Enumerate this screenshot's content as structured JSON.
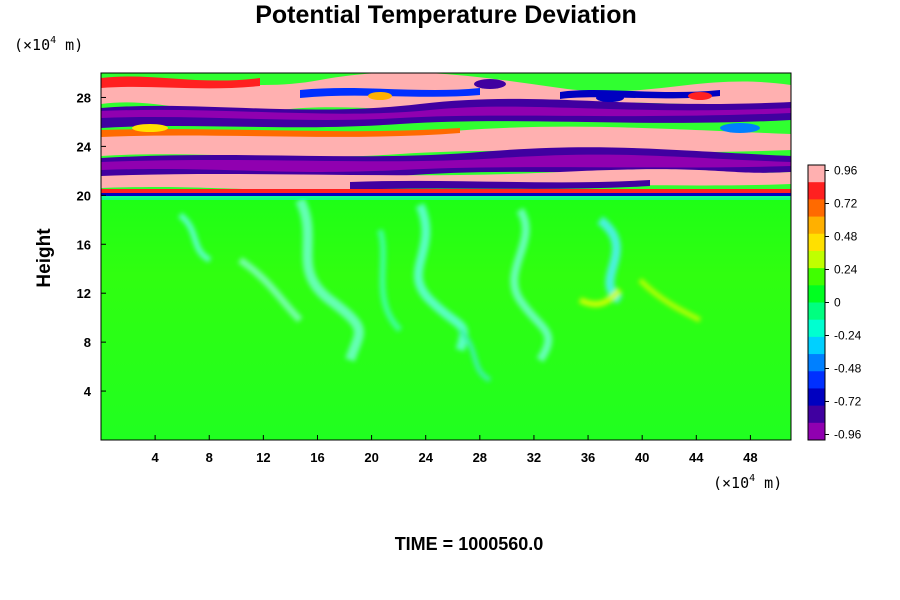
{
  "chart_data": {
    "type": "heatmap",
    "title": "Potential Temperature Deviation",
    "xlabel": "",
    "ylabel": "Height",
    "x_unit": {
      "prefix": "(×10",
      "exp": "4",
      "suffix": " m)"
    },
    "y_unit": {
      "prefix": "(×10",
      "exp": "4",
      "suffix": " m)"
    },
    "xlim": [
      0,
      51
    ],
    "ylim": [
      0,
      30
    ],
    "x_ticks": [
      4,
      8,
      12,
      16,
      20,
      24,
      28,
      32,
      36,
      40,
      44,
      48
    ],
    "y_ticks": [
      4,
      8,
      12,
      16,
      20,
      24,
      28
    ],
    "colorbar": {
      "range": [
        -1.0,
        1.0
      ],
      "tick_values": [
        0.96,
        0.72,
        0.48,
        0.24,
        0,
        -0.24,
        -0.48,
        -0.72,
        -0.96
      ],
      "tick_labels": [
        "0.96",
        "0.72",
        "0.48",
        "0.24",
        "0",
        "-0.24",
        "-0.48",
        "-0.72",
        "-0.96"
      ],
      "colors": [
        "#ffb0b0",
        "#ff2020",
        "#ff6a00",
        "#ffb000",
        "#ffe000",
        "#c0ff00",
        "#40ff00",
        "#00ff20",
        "#00ff80",
        "#00ffd0",
        "#00d0ff",
        "#0080ff",
        "#0030ff",
        "#0000c0",
        "#4000a0",
        "#9000b0"
      ]
    },
    "field_description": {
      "below_20": "near zero (green, roughly -0.1 to 0.1) with faint cyan/yellow turbulent plumes up to ~19",
      "20_to_30": "alternating high-amplitude layers of about +1 (pink/red) and -1 (purple/blue)"
    }
  },
  "footer": {
    "time_label": "TIME = 1000560.0"
  }
}
